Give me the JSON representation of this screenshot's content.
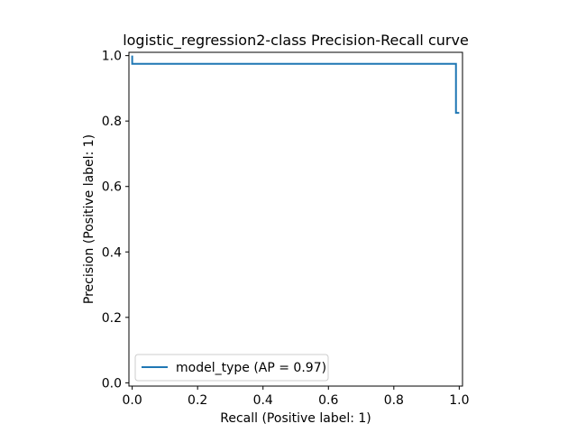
{
  "chart_data": {
    "type": "line",
    "title": "logistic_regression2-class Precision-Recall curve",
    "xlabel": "Recall (Positive label: 1)",
    "ylabel": "Precision (Positive label: 1)",
    "xlim": [
      -0.01,
      1.01
    ],
    "ylim": [
      -0.01,
      1.01
    ],
    "xticks": [
      "0.0",
      "0.2",
      "0.4",
      "0.6",
      "0.8",
      "1.0"
    ],
    "yticks": [
      "0.0",
      "0.2",
      "0.4",
      "0.6",
      "0.8",
      "1.0"
    ],
    "grid": false,
    "legend_position": "lower-left",
    "series": [
      {
        "name": "model_type (AP = 0.97)",
        "color": "#1f77b4",
        "drawstyle": "steps-post",
        "x": [
          0.0,
          0.0,
          0.0,
          0.99,
          0.99,
          1.0
        ],
        "y": [
          1.0,
          1.0,
          0.975,
          0.975,
          0.825,
          0.825
        ]
      }
    ]
  }
}
